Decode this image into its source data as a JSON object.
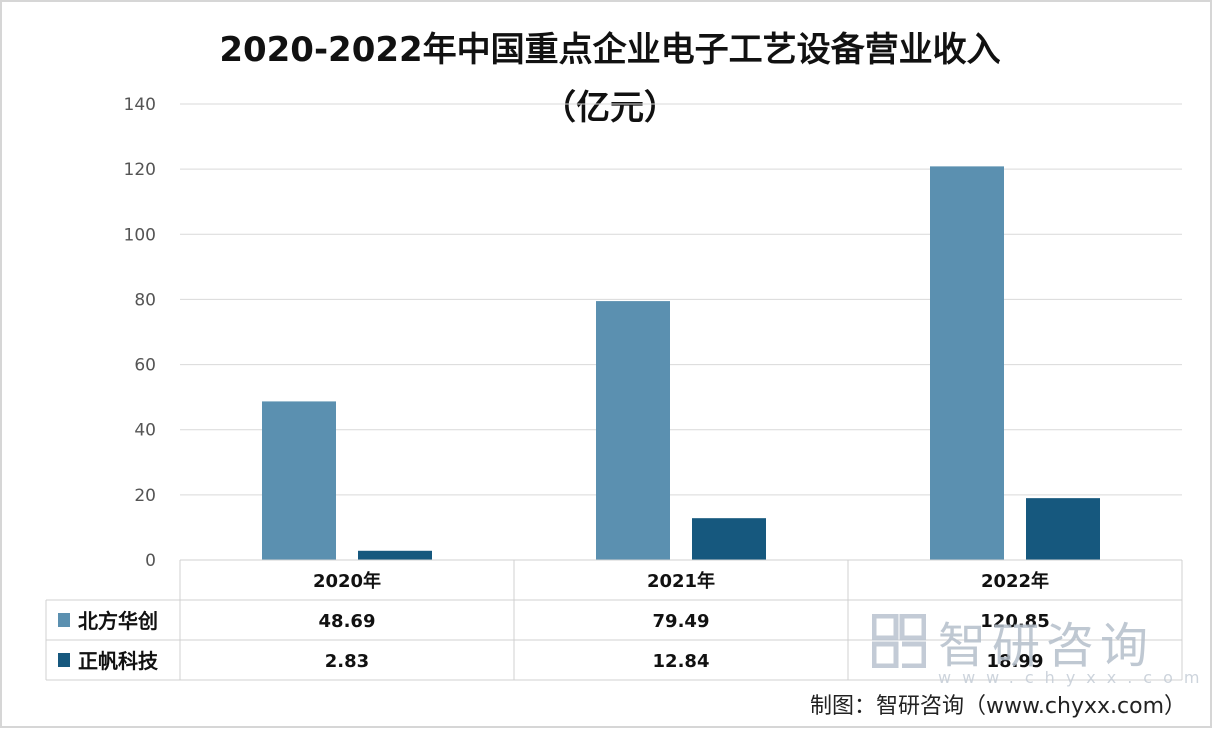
{
  "chart_data": {
    "type": "bar",
    "title_line1": "2020-2022年中国重点企业电子工艺设备营业收入",
    "title_line2": "（亿元）",
    "categories": [
      "2020年",
      "2021年",
      "2022年"
    ],
    "series": [
      {
        "name": "北方华创",
        "values": [
          48.69,
          79.49,
          120.85
        ],
        "color": "#5b90b0",
        "labels": [
          "48.69",
          "79.49",
          "120.85"
        ]
      },
      {
        "name": "正帆科技",
        "values": [
          2.83,
          12.84,
          18.99
        ],
        "color": "#16587e",
        "labels": [
          "2.83",
          "12.84",
          "18.99"
        ]
      }
    ],
    "ylim": [
      0,
      140
    ],
    "yticks": [
      0,
      20,
      40,
      60,
      80,
      100,
      120,
      140
    ],
    "grid": true,
    "data_table": true
  },
  "source": "制图：智研咨询（www.chyxx.com）",
  "watermark": {
    "text": "智研咨询",
    "url": "www.chyxx.com"
  }
}
